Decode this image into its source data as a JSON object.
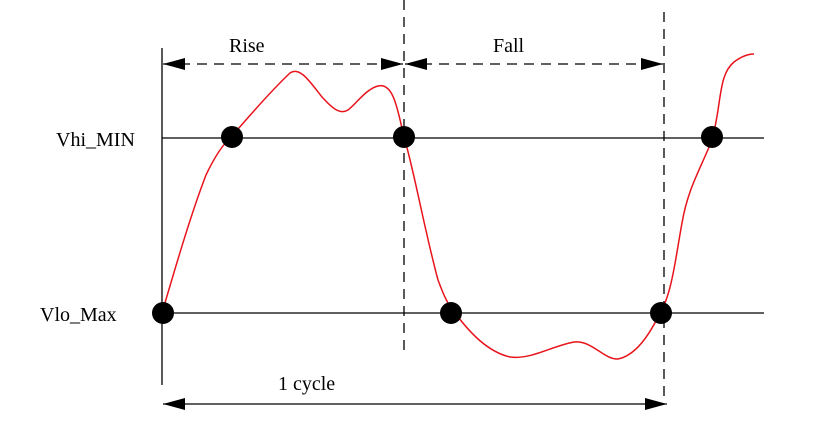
{
  "labels": {
    "rise": "Rise",
    "fall": "Fall",
    "vhi": "Vhi_MIN",
    "vlo": "Vlo_Max",
    "cycle": "1 cycle"
  },
  "colors": {
    "waveform": "#e8141c",
    "lines": "#000000",
    "markers": "#000000"
  }
}
